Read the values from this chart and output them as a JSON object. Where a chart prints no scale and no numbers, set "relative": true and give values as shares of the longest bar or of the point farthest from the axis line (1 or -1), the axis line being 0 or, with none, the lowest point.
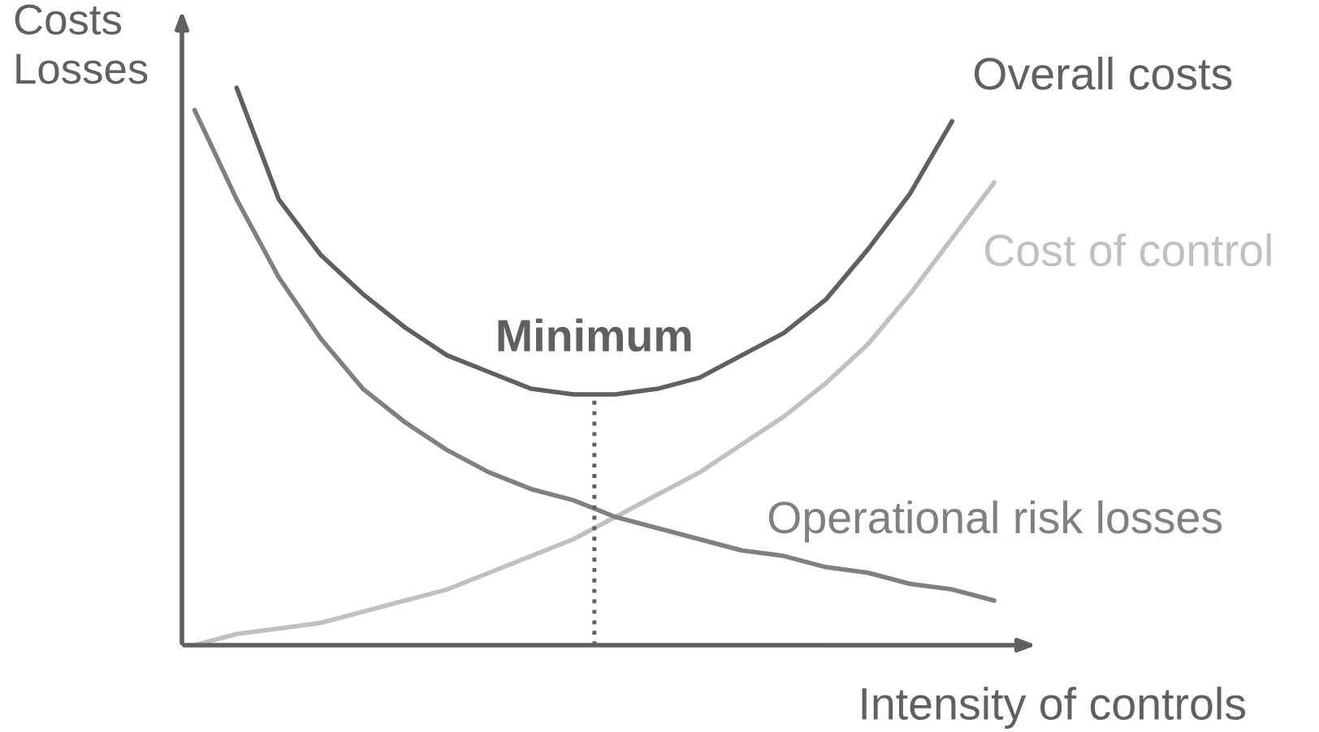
{
  "chart_data": {
    "type": "line",
    "relative": true,
    "xlabel": "Intensity of controls",
    "ylabel": "Costs\nLosses",
    "categories": [
      null,
      null,
      null,
      null,
      null,
      null,
      null,
      null,
      null,
      null,
      null,
      null,
      null,
      null,
      null,
      null,
      null,
      null,
      null,
      null
    ],
    "series": [
      {
        "name": "Overall costs",
        "color": "#606060",
        "values": [
          null,
          1.0,
          0.8,
          0.7,
          0.63,
          0.57,
          0.52,
          0.49,
          0.46,
          0.45,
          0.45,
          0.46,
          0.48,
          0.52,
          0.56,
          0.62,
          0.71,
          0.81,
          0.94,
          null
        ]
      },
      {
        "name": "Cost of control",
        "color": "#c0c0c0",
        "values": [
          0.0,
          0.02,
          0.03,
          0.04,
          0.06,
          0.08,
          0.1,
          0.13,
          0.16,
          0.19,
          0.23,
          0.27,
          0.31,
          0.36,
          0.41,
          0.47,
          0.54,
          0.63,
          0.73,
          0.83
        ]
      },
      {
        "name": "Operational risk losses",
        "color": "#808080",
        "values": [
          0.96,
          0.8,
          0.66,
          0.55,
          0.46,
          0.4,
          0.35,
          0.31,
          0.28,
          0.26,
          0.23,
          0.21,
          0.19,
          0.17,
          0.16,
          0.14,
          0.13,
          0.11,
          0.1,
          0.08
        ]
      }
    ],
    "annotations": [
      "Minimum"
    ],
    "legend": false
  }
}
